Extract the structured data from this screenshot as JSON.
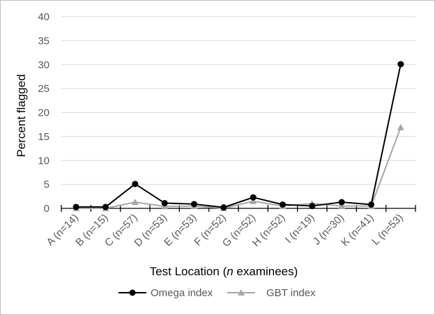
{
  "chart_data": {
    "type": "line",
    "xlabel_prefix": "Test Location (",
    "xlabel_italic": "n",
    "xlabel_suffix": " examinees)",
    "ylabel": "Percent flagged",
    "ylim": [
      0,
      40
    ],
    "yticks": [
      "0",
      "5",
      "10",
      "15",
      "20",
      "25",
      "30",
      "35",
      "40"
    ],
    "grid": true,
    "legend_position": "bottom",
    "categories": [
      "A (n=14)",
      "B (n=15)",
      "C (n=57)",
      "D (n=53)",
      "E (n=53)",
      "F (n=52)",
      "G (n=52)",
      "H (n=52)",
      "I (n=19)",
      "J (n=30)",
      "K (n=41)",
      "L (n=53)"
    ],
    "series": [
      {
        "name": "Omega index",
        "marker": "circle",
        "color": "#000000",
        "values": [
          0.3,
          0.3,
          5.1,
          1.1,
          0.9,
          0.2,
          2.3,
          0.8,
          0.5,
          1.3,
          0.8,
          30.1
        ]
      },
      {
        "name": "GBT index",
        "marker": "triangle",
        "color": "#a6a6a6",
        "values": [
          0.0,
          0.0,
          1.3,
          0.4,
          0.5,
          0.0,
          1.5,
          0.5,
          1.0,
          0.5,
          0.5,
          16.9
        ]
      }
    ]
  }
}
